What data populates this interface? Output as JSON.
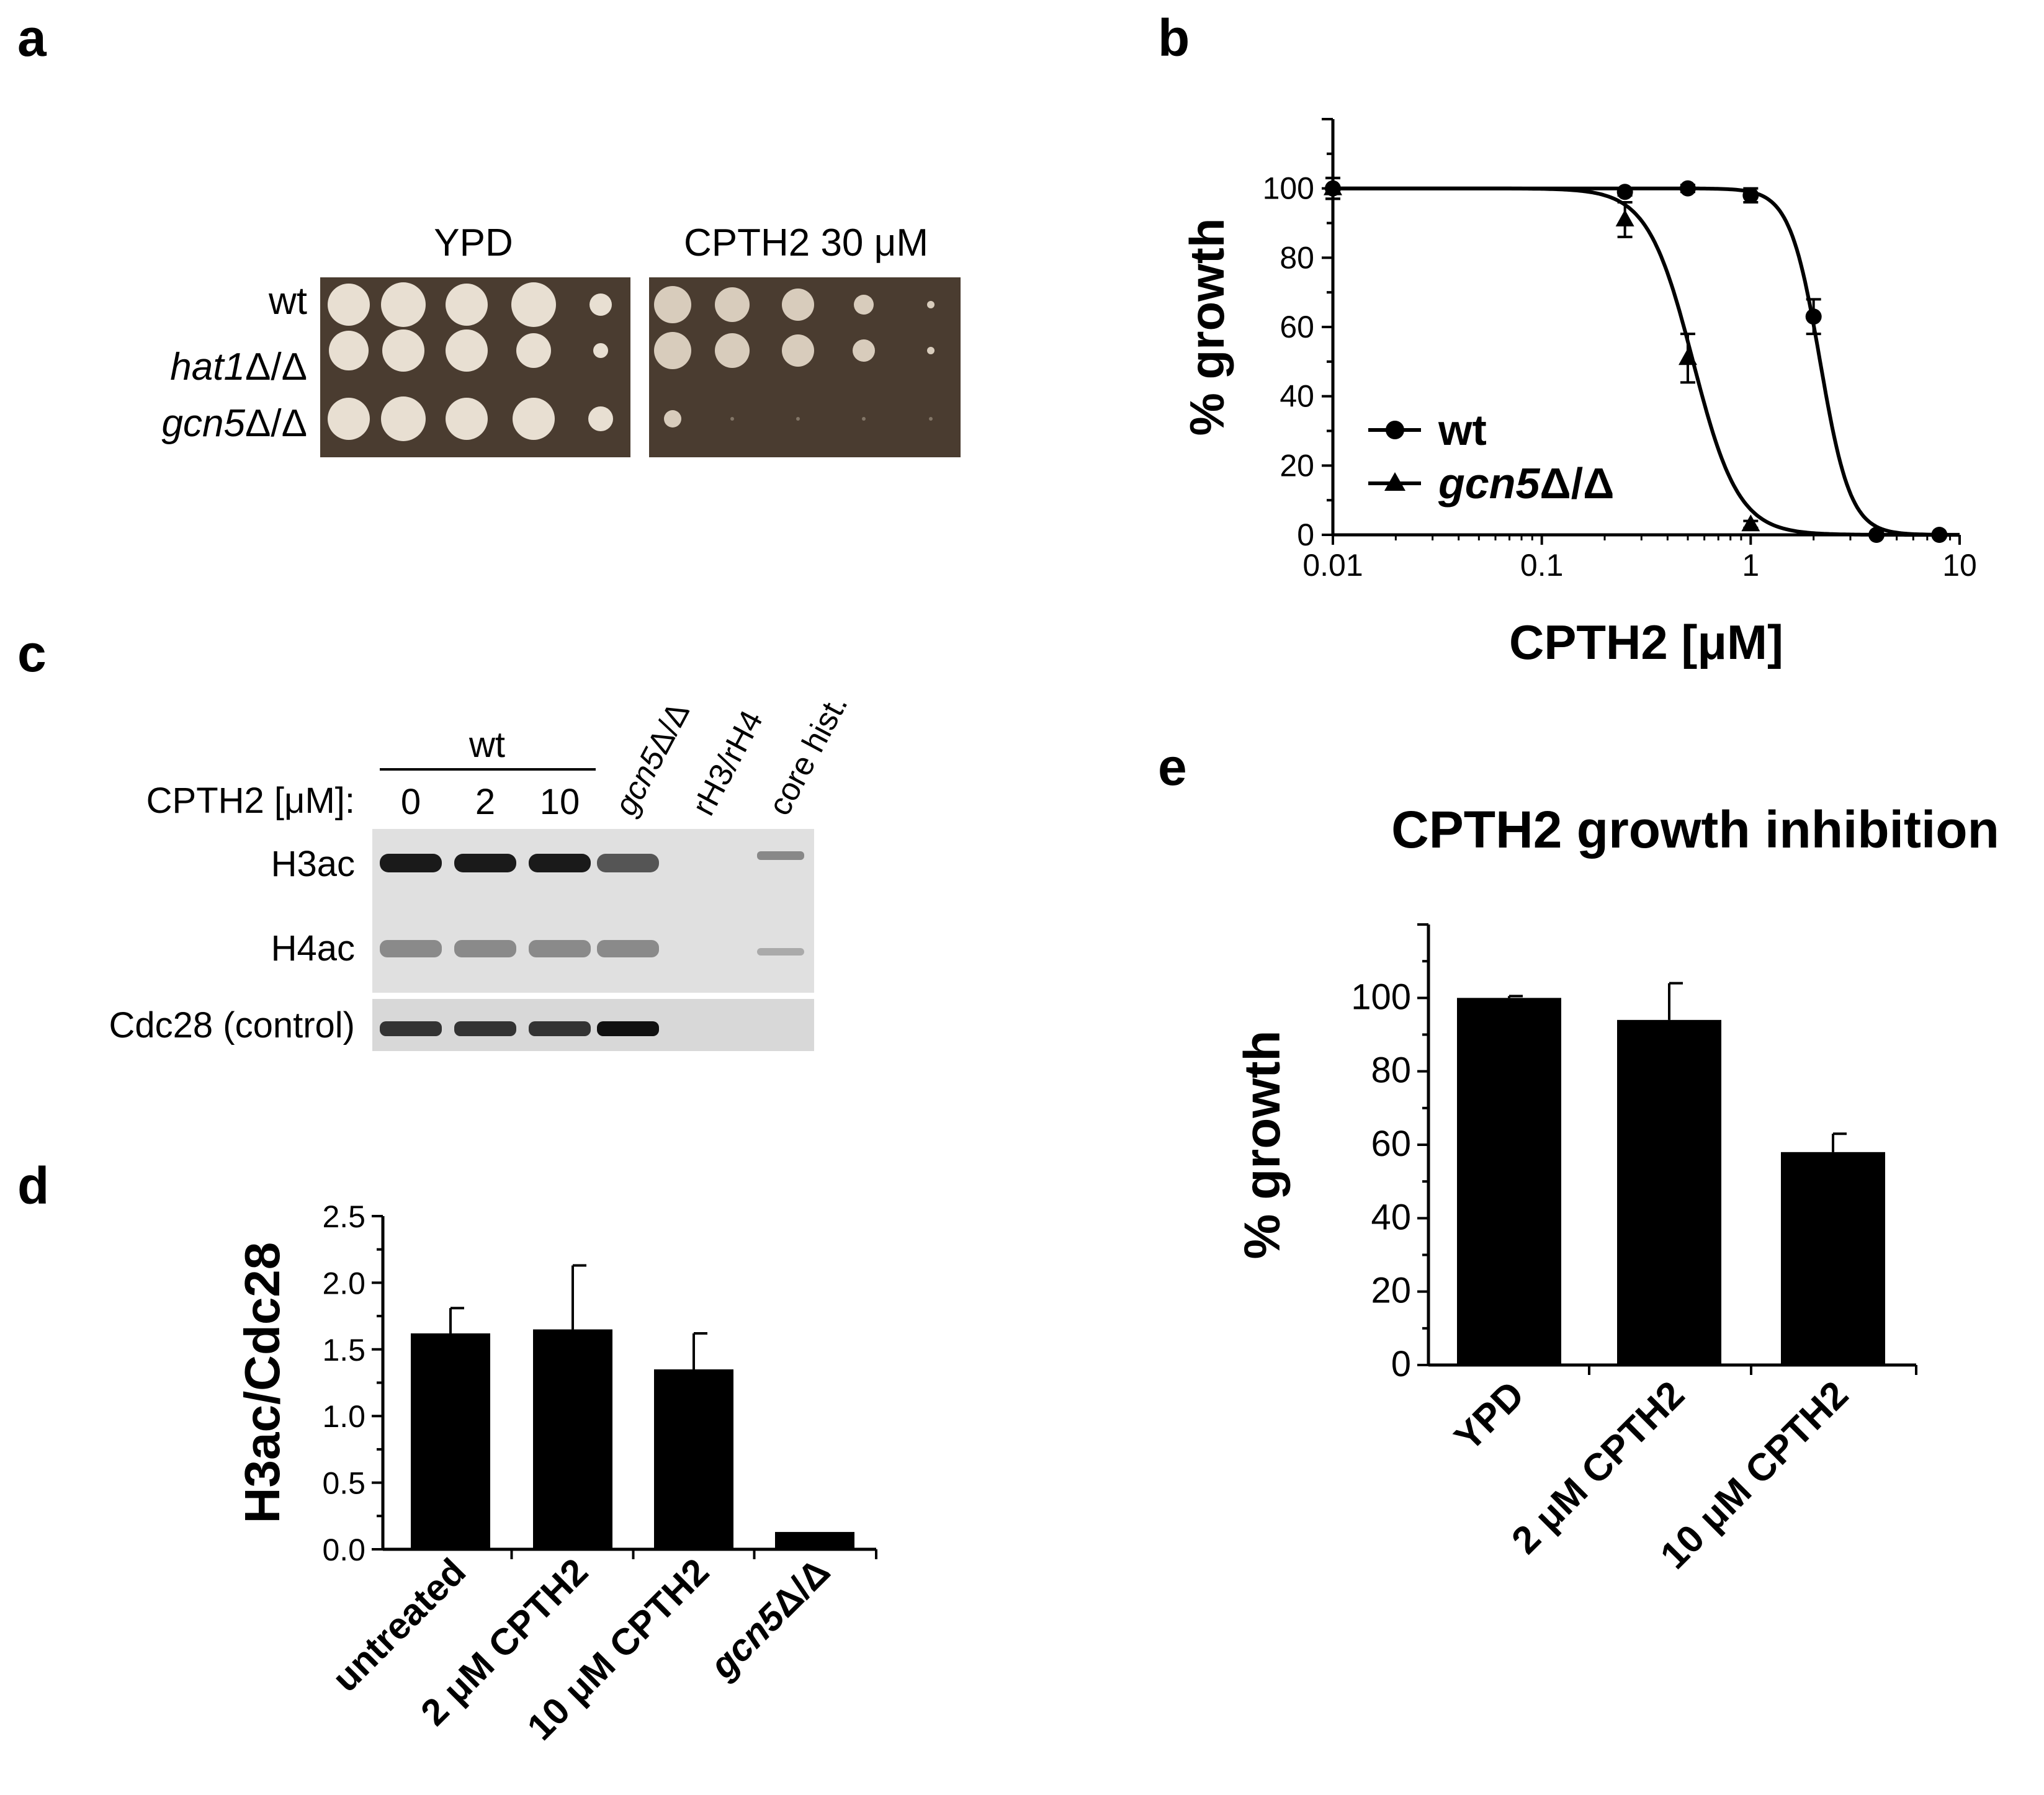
{
  "panels": {
    "a": {
      "label": "a",
      "col_titles": [
        "YPD",
        "CPTH2 30 μM"
      ],
      "strains": [
        {
          "pre": "wt",
          "post": ""
        },
        {
          "pre": "hat1",
          "post": "Δ/Δ"
        },
        {
          "pre": "gcn5",
          "post": "Δ/Δ"
        }
      ]
    },
    "b": {
      "label": "b"
    },
    "c": {
      "label": "c",
      "group_label": "wt",
      "treatment_label": "CPTH2 [μM]:",
      "doses": [
        "0",
        "2",
        "10"
      ],
      "extra_lanes": [
        {
          "pre": "gcn5",
          "post": "Δ/Δ"
        },
        {
          "pre": "rH3/rH4",
          "post": ""
        },
        {
          "pre": "core hist.",
          "post": ""
        }
      ],
      "rows": [
        "H3ac",
        "H4ac",
        "Cdc28 (control)"
      ]
    },
    "d": {
      "label": "d"
    },
    "e": {
      "label": "e"
    }
  },
  "chart_data": [
    {
      "id": "b",
      "type": "line",
      "title": "",
      "xlabel": "CPTH2 [μM]",
      "ylabel": "% growth",
      "xscale": "log",
      "xlim": [
        0.01,
        10
      ],
      "ylim": [
        0,
        120
      ],
      "xticks": [
        0.01,
        0.1,
        1,
        10
      ],
      "xtick_labels": [
        "0.01",
        "0.1",
        "1",
        "10"
      ],
      "yticks": [
        0,
        20,
        40,
        60,
        80,
        100
      ],
      "legend_position": "lower-left",
      "series": [
        {
          "name": "wt",
          "name_pre": "wt",
          "name_post": "",
          "marker": "circle",
          "x": [
            0.01,
            0.25,
            0.5,
            1,
            2,
            4,
            8
          ],
          "y": [
            100,
            99,
            100,
            98,
            63,
            0,
            0
          ],
          "err": [
            3,
            1,
            1,
            2,
            5,
            0,
            0
          ],
          "fit": {
            "ec50": 2.15,
            "hill": 6
          }
        },
        {
          "name": "gcn5Δ/Δ",
          "name_pre": "gcn5",
          "name_post": "Δ/Δ",
          "marker": "triangle",
          "x": [
            0.01,
            0.25,
            0.5,
            1
          ],
          "y": [
            100,
            91,
            51,
            3
          ],
          "err": [
            3,
            5,
            7,
            1
          ],
          "fit": {
            "ec50": 0.53,
            "hill": 4
          }
        }
      ]
    },
    {
      "id": "d",
      "type": "bar",
      "title": "",
      "xlabel": "",
      "ylabel": "H3ac/Cdc28",
      "ylim": [
        0,
        2.5
      ],
      "yticks": [
        0,
        0.5,
        1,
        1.5,
        2,
        2.5
      ],
      "ytick_labels": [
        "0.0",
        "0.5",
        "1.0",
        "1.5",
        "2.0",
        "2.5"
      ],
      "categories": [
        "untreated",
        "2 μM CPTH2",
        "10 μM CPTH2",
        "gcn5Δ/Δ"
      ],
      "values": [
        1.62,
        1.65,
        1.35,
        0.13
      ],
      "errors": [
        0.19,
        0.48,
        0.27,
        0
      ]
    },
    {
      "id": "e",
      "type": "bar",
      "title": "CPTH2 growth inhibition",
      "xlabel": "",
      "ylabel": "% growth",
      "ylim": [
        0,
        120
      ],
      "yticks": [
        0,
        20,
        40,
        60,
        80,
        100
      ],
      "categories": [
        "YPD",
        "2 μM CPTH2",
        "10 μM CPTH2"
      ],
      "values": [
        100,
        94,
        58
      ],
      "errors": [
        0.5,
        10,
        5
      ]
    }
  ]
}
